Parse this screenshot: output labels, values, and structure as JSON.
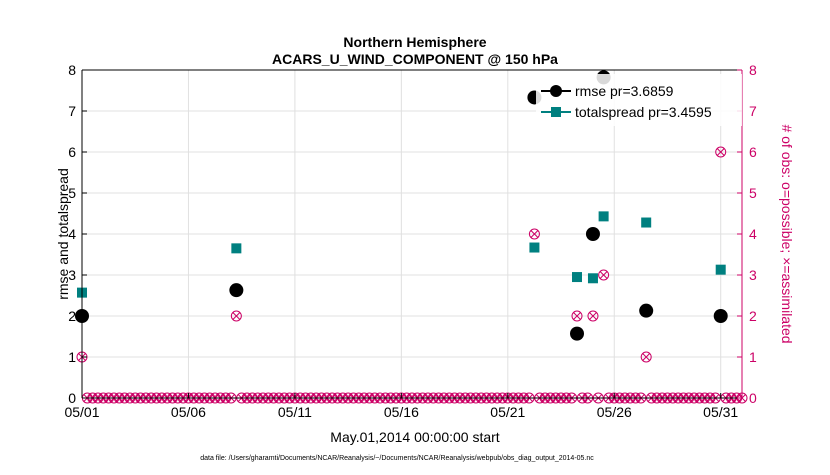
{
  "chart_data": {
    "type": "scatter",
    "title": "Northern Hemisphere",
    "subtitle": "ACARS_U_WIND_COMPONENT @ 150 hPa",
    "xlabel": "May.01,2014 00:00:00 start",
    "ylabel_left": "rmse and totalspread",
    "ylabel_right": "# of obs: o=possible; ×=assimilated",
    "footnote": "data file: /Users/gharamti/Documents/NCAR/Reanalysis/~/Documents/NCAR/Reanalysis/webpub/obs_diag_output_2014-05.nc",
    "x_range_days": [
      0,
      31
    ],
    "ylim_left": [
      0,
      8
    ],
    "ylim_right": [
      0,
      8
    ],
    "x_ticks": [
      {
        "day": 0,
        "label": "05/01"
      },
      {
        "day": 5,
        "label": "05/06"
      },
      {
        "day": 10,
        "label": "05/11"
      },
      {
        "day": 15,
        "label": "05/16"
      },
      {
        "day": 20,
        "label": "05/21"
      },
      {
        "day": 25,
        "label": "05/26"
      },
      {
        "day": 30,
        "label": "05/31"
      }
    ],
    "y_ticks": [
      0,
      1,
      2,
      3,
      4,
      5,
      6,
      7,
      8
    ],
    "grid": true,
    "legend_position": "top-right",
    "colors": {
      "rmse": "#000000",
      "totalspread": "#008080",
      "obs": "#cc0066",
      "grid": "#e0e0e0",
      "axis": "#000000"
    },
    "series": [
      {
        "name": "rmse pr=3.6859",
        "key": "rmse",
        "axis": "left",
        "marker": "circle",
        "points": [
          [
            0,
            2.0
          ],
          [
            7.25,
            2.63
          ],
          [
            21.25,
            7.33
          ],
          [
            23.25,
            1.57
          ],
          [
            24.0,
            4.0
          ],
          [
            24.5,
            7.82
          ],
          [
            26.5,
            2.13
          ],
          [
            30.0,
            2.0
          ]
        ]
      },
      {
        "name": "totalspread pr=3.4595",
        "key": "totalspread",
        "axis": "left",
        "marker": "square",
        "points": [
          [
            0,
            2.57
          ],
          [
            7.25,
            3.65
          ],
          [
            21.25,
            3.67
          ],
          [
            23.25,
            2.95
          ],
          [
            24.0,
            2.92
          ],
          [
            24.5,
            4.43
          ],
          [
            26.5,
            4.28
          ],
          [
            30.0,
            3.13
          ]
        ]
      }
    ],
    "obs_possible": {
      "axis": "right",
      "step_days": 0.25,
      "nonzero": [
        [
          0,
          1
        ],
        [
          7.25,
          2
        ],
        [
          21.25,
          4
        ],
        [
          23.25,
          2
        ],
        [
          24.0,
          2
        ],
        [
          24.5,
          3
        ],
        [
          26.5,
          1
        ],
        [
          30.0,
          6
        ]
      ]
    }
  }
}
